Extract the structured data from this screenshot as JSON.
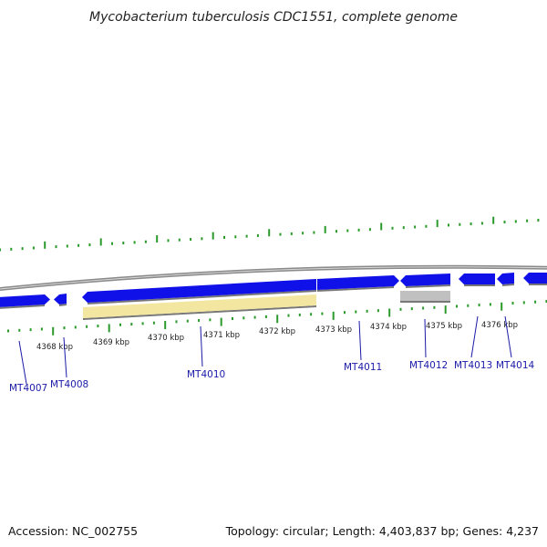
{
  "title": "Mycobacterium tuberculosis CDC1551, complete genome",
  "footer": {
    "accession": "Accession: NC_002755",
    "summary": "Topology: circular; Length: 4,403,837 bp; Genes: 4,237"
  },
  "colors": {
    "gene_blue": "#1010e8",
    "gene_yellow": "#f2e6a0",
    "gene_gray": "#c0c0c0",
    "backbone": "#8a8a8a",
    "ticks": "#2a9a2a",
    "label_line": "#1a1aa8"
  },
  "scale_labels": [
    "4368 kbp",
    "4369 kbp",
    "4370 kbp",
    "4371 kbp",
    "4372 kbp",
    "4373 kbp",
    "4374 kbp",
    "4375 kbp",
    "4376 kbp"
  ],
  "gene_labels": [
    "MT4007",
    "MT4008",
    "MT4010",
    "MT4011",
    "MT4012",
    "MT4013",
    "MT4014"
  ]
}
